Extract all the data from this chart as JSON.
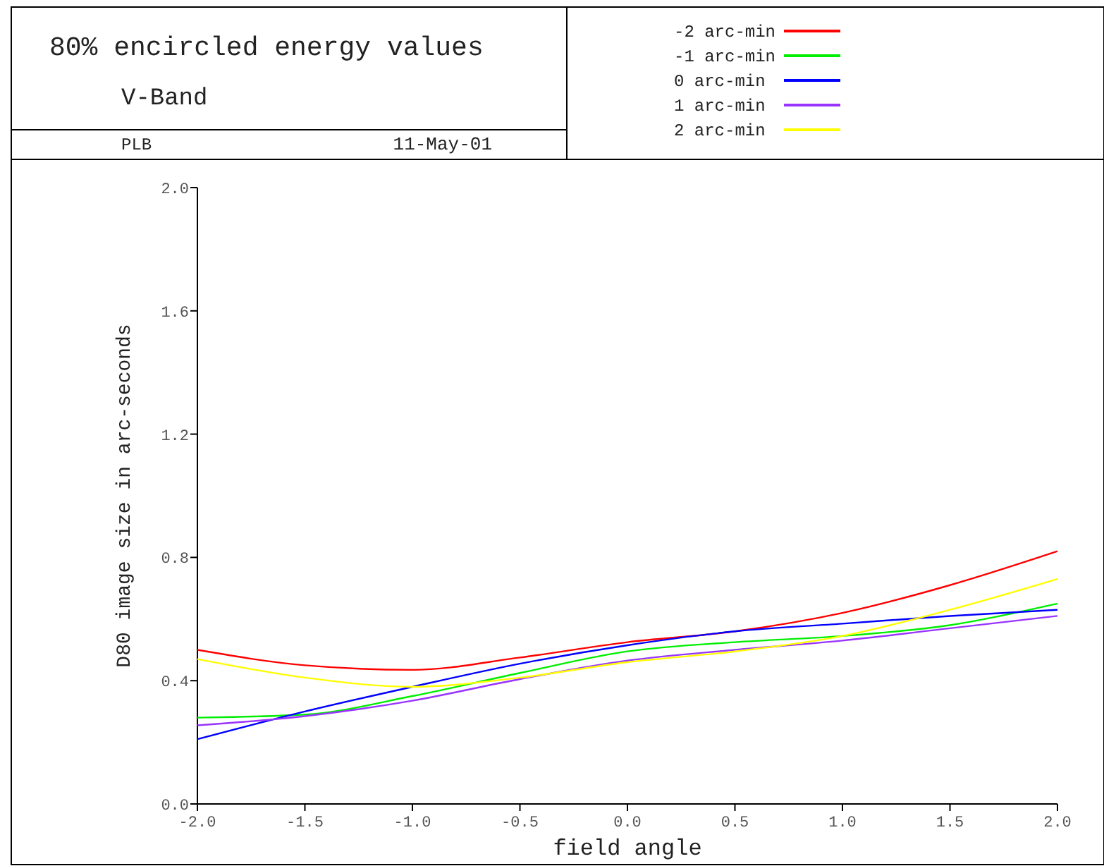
{
  "chart_data": {
    "type": "line",
    "title": "80% encircled energy values",
    "subtitle": "V-Band",
    "annotations": [
      "PLB",
      "11-May-01"
    ],
    "xlabel": "field angle",
    "ylabel": "D80 image size in arc-seconds",
    "x": [
      -2,
      -1.5,
      -1,
      -0.5,
      0,
      0.5,
      1,
      1.5,
      2
    ],
    "series": [
      {
        "name": "-2 arc-min",
        "color": "#ff0000",
        "values": [
          0.5,
          0.45,
          0.435,
          0.475,
          0.525,
          0.56,
          0.62,
          0.71,
          0.82
        ]
      },
      {
        "name": "-1 arc-min",
        "color": "#00ee00",
        "values": [
          0.28,
          0.29,
          0.35,
          0.425,
          0.495,
          0.525,
          0.545,
          0.58,
          0.65
        ]
      },
      {
        "name": "0 arc-min",
        "color": "#0000ff",
        "values": [
          0.21,
          0.3,
          0.38,
          0.455,
          0.515,
          0.56,
          0.585,
          0.61,
          0.63
        ]
      },
      {
        "name": "1 arc-min",
        "color": "#9933ff",
        "values": [
          0.255,
          0.285,
          0.335,
          0.405,
          0.465,
          0.5,
          0.53,
          0.57,
          0.61
        ]
      },
      {
        "name": "2 arc-min",
        "color": "#ffff00",
        "values": [
          0.47,
          0.41,
          0.38,
          0.41,
          0.46,
          0.495,
          0.545,
          0.63,
          0.73
        ]
      }
    ],
    "xlim": [
      -2,
      2
    ],
    "xticks": [
      {
        "value": -2,
        "label": "-2.0"
      },
      {
        "value": -1.5,
        "label": "-1.5"
      },
      {
        "value": -1,
        "label": "-1.0"
      },
      {
        "value": -0.5,
        "label": "-0.5"
      },
      {
        "value": 0,
        "label": "0.0"
      },
      {
        "value": 0.5,
        "label": "0.5"
      },
      {
        "value": 1,
        "label": "1.0"
      },
      {
        "value": 1.5,
        "label": "1.5"
      },
      {
        "value": 2,
        "label": "2.0"
      }
    ],
    "ylim": [
      0,
      2
    ],
    "yticks": [
      {
        "value": 0,
        "label": "0.0"
      },
      {
        "value": 0.4,
        "label": "0.4"
      },
      {
        "value": 0.8,
        "label": "0.8"
      },
      {
        "value": 1.2,
        "label": "1.2"
      },
      {
        "value": 1.6,
        "label": "1.6"
      },
      {
        "value": 2,
        "label": "2.0"
      }
    ],
    "grid": false,
    "legend": "top right",
    "line_style": "solid",
    "marker": "none"
  }
}
